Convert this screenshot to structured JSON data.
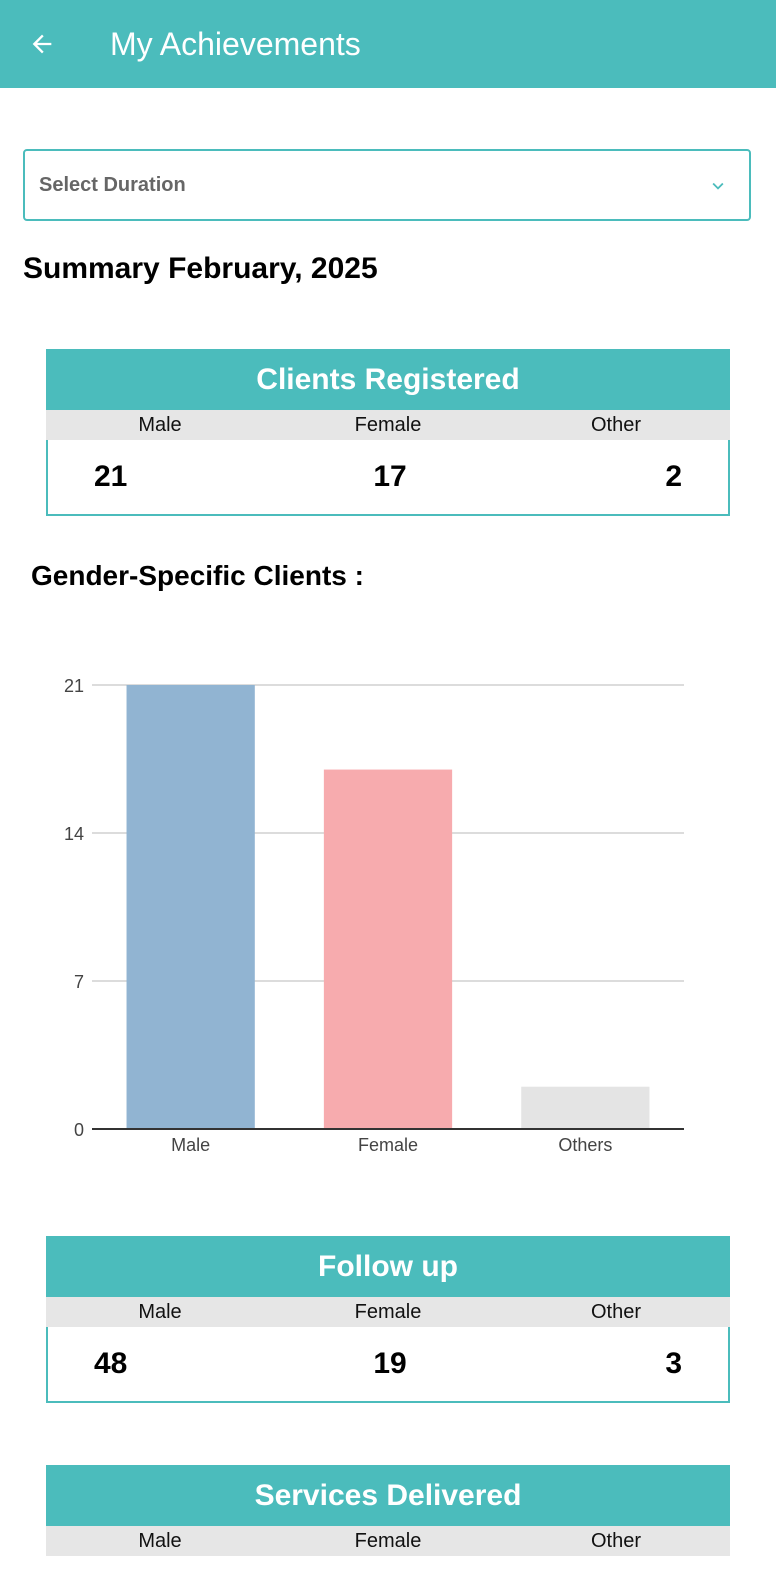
{
  "appbar": {
    "title": "My Achievements",
    "back_icon": "arrow-left-icon"
  },
  "duration_select": {
    "placeholder": "Select Duration",
    "icon": "chevron-down-icon",
    "accent": "#4bbcbc"
  },
  "summary": {
    "title": "Summary February, 2025"
  },
  "clients_registered": {
    "title": "Clients Registered",
    "labels": {
      "male": "Male",
      "female": "Female",
      "other": "Other"
    },
    "values": {
      "male": "21",
      "female": "17",
      "other": "2"
    }
  },
  "chart_section": {
    "heading": "Gender-Specific Clients :"
  },
  "chart_data": {
    "type": "bar",
    "categories": [
      "Male",
      "Female",
      "Others"
    ],
    "values": [
      21,
      17,
      2
    ],
    "colors": [
      "#91b4d2",
      "#f7abae",
      "#e4e4e4"
    ],
    "yticks": [
      0,
      7,
      14,
      21
    ],
    "ylim": [
      0,
      21
    ],
    "grid": true,
    "title": "",
    "xlabel": "",
    "ylabel": ""
  },
  "follow_up": {
    "title": "Follow up",
    "labels": {
      "male": "Male",
      "female": "Female",
      "other": "Other"
    },
    "values": {
      "male": "48",
      "female": "19",
      "other": "3"
    }
  },
  "services_delivered": {
    "title": "Services Delivered",
    "labels": {
      "male": "Male",
      "female": "Female",
      "other": "Other"
    }
  },
  "colors": {
    "primary": "#4bbcbc",
    "label_bg": "#e6e6e6"
  }
}
